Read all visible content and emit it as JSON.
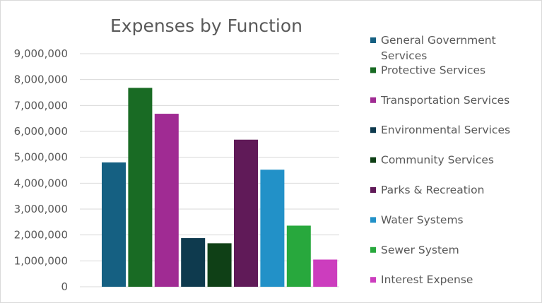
{
  "chart_data": {
    "type": "bar",
    "title": "Expenses by Function",
    "xlabel": "",
    "ylabel": "",
    "ylim": [
      0,
      9000000
    ],
    "yticks": [
      0,
      1000000,
      2000000,
      3000000,
      4000000,
      5000000,
      6000000,
      7000000,
      8000000,
      9000000
    ],
    "ytick_labels": [
      "0",
      "1,000,000",
      "2,000,000",
      "3,000,000",
      "4,000,000",
      "5,000,000",
      "6,000,000",
      "7,000,000",
      "8,000,000",
      "9,000,000"
    ],
    "grid": true,
    "legend_position": "right",
    "series": [
      {
        "name": "General Government Services",
        "legend_lines": [
          "General Government",
          "Services"
        ],
        "value": 4800000,
        "color": "#156082"
      },
      {
        "name": "Protective Services",
        "legend_lines": [
          "Protective Services"
        ],
        "value": 7680000,
        "color": "#196B24"
      },
      {
        "name": "Transportation Services",
        "legend_lines": [
          "Transportation Services"
        ],
        "value": 6680000,
        "color": "#A02B93"
      },
      {
        "name": "Environmental Services",
        "legend_lines": [
          "Environmental Services"
        ],
        "value": 1880000,
        "color": "#0E3A4E"
      },
      {
        "name": "Community Services",
        "legend_lines": [
          "Community Services"
        ],
        "value": 1680000,
        "color": "#0F4016"
      },
      {
        "name": "Parks & Recreation",
        "legend_lines": [
          "Parks & Recreation"
        ],
        "value": 5680000,
        "color": "#601A58"
      },
      {
        "name": "Water Systems",
        "legend_lines": [
          "Water Systems"
        ],
        "value": 4520000,
        "color": "#2291C8"
      },
      {
        "name": "Sewer System",
        "legend_lines": [
          "Sewer System"
        ],
        "value": 2360000,
        "color": "#28A83D"
      },
      {
        "name": "Interest Expense",
        "legend_lines": [
          "Interest Expense"
        ],
        "value": 1050000,
        "color": "#CC3DBE"
      }
    ]
  }
}
